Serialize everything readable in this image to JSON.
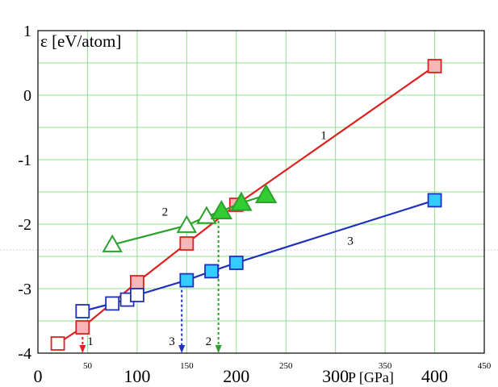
{
  "chart_data": {
    "type": "line",
    "title": "ε [eV/atom]",
    "xlabel": "P [GPa]",
    "ylabel": "",
    "xlim": [
      0,
      450
    ],
    "ylim": [
      -4,
      1
    ],
    "grid": true,
    "x_ticks_major": [
      {
        "value": 0,
        "label": "0"
      },
      {
        "value": 100,
        "label": "100"
      },
      {
        "value": 200,
        "label": "200"
      },
      {
        "value": 300,
        "label": "300"
      },
      {
        "value": 400,
        "label": "400"
      }
    ],
    "x_ticks_minor": [
      {
        "value": 50,
        "label": "50"
      },
      {
        "value": 150,
        "label": "150"
      },
      {
        "value": 250,
        "label": "250"
      },
      {
        "value": 350,
        "label": "350"
      },
      {
        "value": 450,
        "label": "450"
      }
    ],
    "y_ticks": [
      {
        "value": 1,
        "label": "1"
      },
      {
        "value": 0,
        "label": "0"
      },
      {
        "value": -1,
        "label": "-1"
      },
      {
        "value": -2,
        "label": "-2"
      },
      {
        "value": -3,
        "label": "-3"
      },
      {
        "value": -4,
        "label": "-4"
      }
    ],
    "series": [
      {
        "name": "1",
        "color": "#e02020",
        "marker": "square",
        "points": [
          {
            "x": 20,
            "y": -3.85,
            "fill": "#ffffff"
          },
          {
            "x": 45,
            "y": -3.6,
            "fill": "#f4b6b6"
          },
          {
            "x": 100,
            "y": -2.9,
            "fill": "#f4b6b6"
          },
          {
            "x": 150,
            "y": -2.3,
            "fill": "#f4b6b6"
          },
          {
            "x": 200,
            "y": -1.7,
            "fill": "#f4b6b6"
          },
          {
            "x": 400,
            "y": 0.45,
            "fill": "#f4b6b6"
          }
        ]
      },
      {
        "name": "2",
        "color": "#2ca02c",
        "marker": "triangle",
        "points": [
          {
            "x": 75,
            "y": -2.32,
            "fill": "#ffffff"
          },
          {
            "x": 150,
            "y": -2.02,
            "fill": "#ffffff"
          },
          {
            "x": 170,
            "y": -1.88,
            "fill": "#ffffff"
          },
          {
            "x": 185,
            "y": -1.8,
            "fill": "#33cc33"
          },
          {
            "x": 205,
            "y": -1.67,
            "fill": "#33cc33"
          },
          {
            "x": 230,
            "y": -1.55,
            "fill": "#33cc33"
          }
        ]
      },
      {
        "name": "3",
        "color": "#1f2fbf",
        "marker": "square",
        "points": [
          {
            "x": 45,
            "y": -3.35,
            "fill": "#ffffff"
          },
          {
            "x": 75,
            "y": -3.23,
            "fill": "#ffffff"
          },
          {
            "x": 90,
            "y": -3.17,
            "fill": "#ffffff"
          },
          {
            "x": 100,
            "y": -3.1,
            "fill": "#ffffff"
          },
          {
            "x": 150,
            "y": -2.87,
            "fill": "#33ccff"
          },
          {
            "x": 175,
            "y": -2.73,
            "fill": "#33ccff"
          },
          {
            "x": 200,
            "y": -2.6,
            "fill": "#33ccff"
          },
          {
            "x": 400,
            "y": -1.63,
            "fill": "#33ccff"
          }
        ]
      }
    ],
    "series_labels": [
      {
        "text": "1",
        "x": 285,
        "y": -0.68
      },
      {
        "text": "2",
        "x": 125,
        "y": -1.87
      },
      {
        "text": "3",
        "x": 312,
        "y": -2.32
      }
    ],
    "transition_arrows": [
      {
        "label": "1",
        "x": 45,
        "y_from": -3.6,
        "y_to": -4,
        "color": "#e02020"
      },
      {
        "label": "3",
        "x": 145,
        "y_from": -2.87,
        "y_to": -4,
        "color": "#1f2fbf"
      },
      {
        "label": "2",
        "x": 182,
        "y_from": -1.8,
        "y_to": -4,
        "color": "#2ca02c"
      }
    ]
  }
}
